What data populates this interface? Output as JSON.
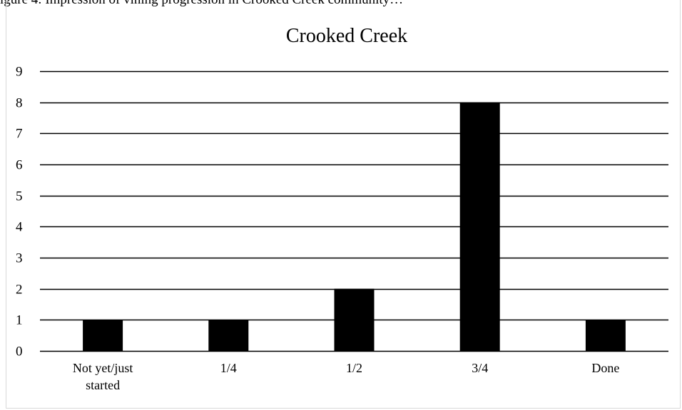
{
  "caption": "igure 4: Impression of vining progression in Crooked Creek community…",
  "chart_data": {
    "type": "bar",
    "title": "Crooked Creek",
    "xlabel": "",
    "ylabel": "",
    "categories": [
      [
        "Not yet/just",
        "started"
      ],
      [
        "1/4"
      ],
      [
        "1/2"
      ],
      [
        "3/4"
      ],
      [
        "Done"
      ]
    ],
    "values": [
      1,
      1,
      2,
      8,
      1
    ],
    "ylim": [
      0,
      9
    ],
    "yticks": [
      0,
      1,
      2,
      3,
      4,
      5,
      6,
      7,
      8,
      9
    ],
    "grid": true,
    "legend": "none",
    "bar_color": "#000000",
    "grid_color": "#000000"
  }
}
